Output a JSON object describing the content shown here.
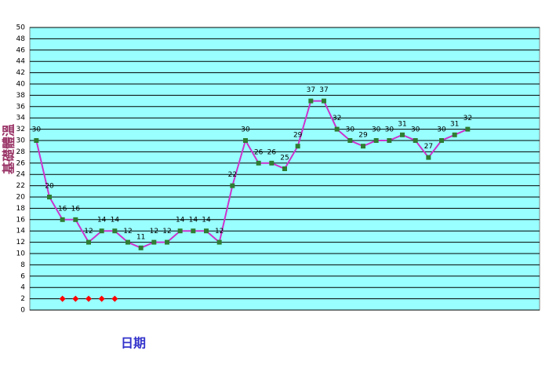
{
  "chart_data": {
    "type": "line",
    "y_label": "基礎體溫",
    "x_label": "日期",
    "categories": [
      null,
      null,
      null,
      null,
      null,
      null,
      null,
      null,
      null,
      null,
      null,
      null,
      null,
      null,
      null,
      null,
      null,
      null,
      null,
      null,
      null,
      null,
      null,
      null,
      null,
      null,
      null,
      null,
      null,
      null,
      null,
      null,
      null,
      null,
      null,
      null,
      null,
      null,
      null
    ],
    "series": [
      {
        "color": "#cc33cc",
        "marker": "square",
        "marker_color": "#2e7d32",
        "line": true,
        "data_labels": true,
        "values": [
          30,
          20,
          16,
          16,
          12,
          14,
          14,
          12,
          11,
          12,
          12,
          14,
          14,
          14,
          12,
          22,
          30,
          26,
          26,
          25,
          29,
          37,
          37,
          32,
          30,
          29,
          30,
          30,
          31,
          30,
          27,
          30,
          31,
          32,
          null,
          null,
          null,
          null,
          null
        ]
      },
      {
        "color": "#ff0000",
        "marker": "diamond",
        "marker_color": "#ff0000",
        "line": false,
        "data_labels": false,
        "values": [
          null,
          null,
          2,
          2,
          2,
          2,
          2,
          null,
          null,
          null,
          null,
          null,
          null,
          null,
          null,
          null,
          null,
          null,
          null,
          null,
          null,
          null,
          null,
          null,
          null,
          null,
          null,
          null,
          null,
          null,
          null,
          null,
          null,
          null,
          null,
          null,
          null,
          null,
          null
        ]
      }
    ],
    "ylim": [
      0,
      50
    ],
    "yticks": [
      0,
      2,
      4,
      6,
      8,
      10,
      12,
      14,
      16,
      18,
      20,
      22,
      24,
      26,
      28,
      30,
      32,
      34,
      36,
      38,
      40,
      42,
      44,
      46,
      48,
      50
    ],
    "grid": true,
    "plot_background": "#99ffff"
  }
}
